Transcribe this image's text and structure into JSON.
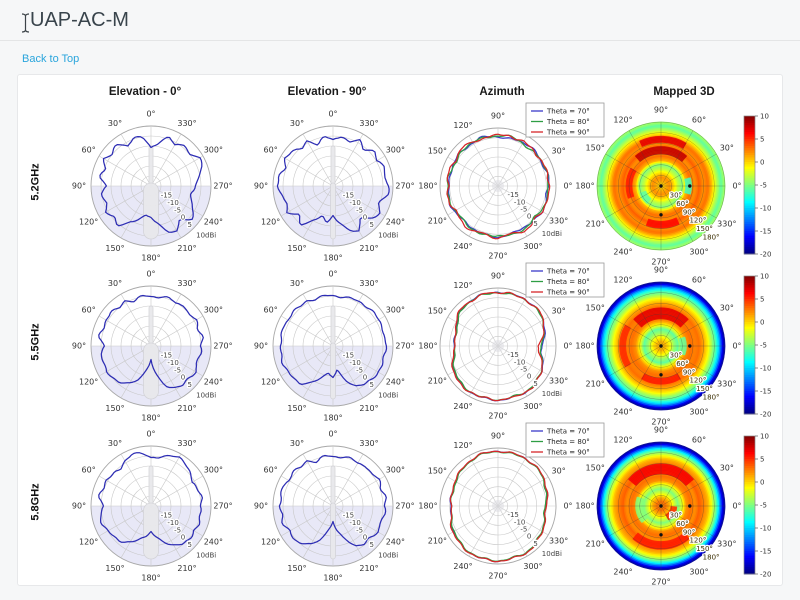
{
  "page": {
    "title": "UAP-AC-M",
    "back_link": "Back to Top"
  },
  "table": {
    "column_headers": [
      "Elevation - 0°",
      "Elevation - 90°",
      "Azimuth",
      "Mapped 3D"
    ],
    "row_labels": [
      "5.2GHz",
      "5.5GHz",
      "5.8GHz"
    ]
  },
  "chart_data": {
    "type": "polar-suite",
    "unit": "dBi",
    "radial_range": [
      -20,
      10
    ],
    "radial_ticks": [
      -15,
      -10,
      -5,
      0,
      5
    ],
    "radial_outer_label": "10dBi",
    "angle_step_deg": 10,
    "angle_labels": [
      "0°",
      "30°",
      "60°",
      "90°",
      "120°",
      "150°",
      "180°",
      "210°",
      "240°",
      "270°",
      "300°",
      "330°"
    ],
    "legend": {
      "entries": [
        {
          "label": "Theta = 70°",
          "color": "#3a3ac8"
        },
        {
          "label": "Theta = 80°",
          "color": "#2e9e44"
        },
        {
          "label": "Theta = 90°",
          "color": "#d62728"
        }
      ]
    },
    "colorbar": {
      "ticks": [
        10,
        5,
        0,
        -5,
        -10,
        -15,
        -20
      ],
      "range": [
        -20,
        10
      ]
    },
    "mapped3d_inner_labels": [
      "30°",
      "60°",
      "90°",
      "120°",
      "150°",
      "180°"
    ],
    "mapped3d_markers": [
      [
        0,
        0
      ],
      [
        0.45,
        0
      ],
      [
        0.45,
        270
      ]
    ],
    "colors": {
      "trace": "#2d2db4",
      "shading": "#d6d6f0",
      "grid": "#c9c9c9",
      "device": "#e9e9ec"
    },
    "rows": [
      {
        "frequency": "5.2GHz",
        "elevation0": {
          "values": [
            -1,
            4.5,
            6,
            3,
            7,
            5,
            7.5,
            4,
            6,
            2.5,
            5.5,
            3,
            6.5,
            4,
            5.5,
            1,
            -2,
            -6,
            -4,
            -1,
            4,
            6,
            2,
            6.5,
            4,
            1.5,
            0.5,
            2,
            4,
            7.5,
            8,
            4.5,
            7,
            3.5,
            6,
            2
          ]
        },
        "elevation90": {
          "values": [
            3,
            5,
            2,
            6,
            4,
            7,
            8,
            5,
            7.5,
            8,
            6,
            4,
            7,
            2,
            5,
            0,
            -4,
            -2,
            -5,
            -1,
            3,
            6,
            1,
            5,
            7,
            4,
            8,
            7.5,
            6,
            8,
            5,
            7,
            4,
            6.5,
            3,
            5.5
          ]
        },
        "azimuth": {
          "series": [
            {
              "name": "Theta = 70°",
              "values": [
                6,
                6.5,
                6,
                5.5,
                6,
                6.5,
                6,
                5.5,
                5,
                5.5,
                6,
                6.5,
                6,
                5.5,
                6,
                6,
                5.5,
                5,
                5.5,
                6,
                6.5,
                6,
                5.5,
                5,
                5.5,
                6,
                6,
                6.5,
                6,
                5.5,
                5,
                5.5,
                6,
                6.5,
                6,
                5.5
              ]
            },
            {
              "name": "Theta = 80°",
              "values": [
                5.5,
                6,
                6.5,
                6,
                5.5,
                5,
                5.5,
                6,
                6.5,
                6,
                5.5,
                6,
                6.5,
                6,
                5.5,
                5,
                5.5,
                6,
                6,
                6.5,
                6,
                5.5,
                5,
                5.5,
                6,
                6.5,
                6,
                5.5,
                6,
                6.5,
                6,
                5.5,
                5,
                5.5,
                6,
                6.5
              ]
            },
            {
              "name": "Theta = 90°",
              "values": [
                6.5,
                5.5,
                7,
                6,
                5,
                6.5,
                7,
                5.5,
                6.5,
                7,
                6,
                5,
                6.5,
                7.5,
                6,
                5.5,
                7,
                6,
                5.5,
                7,
                6.5,
                5,
                6,
                7,
                6.5,
                5.5,
                6.5,
                7,
                5.5,
                6,
                7,
                6.5,
                5.5,
                6.5,
                6,
                7
              ]
            }
          ]
        },
        "mapped3d": {
          "radial_profile": [
            [
              0,
              -1
            ],
            [
              0.07,
              1
            ],
            [
              0.14,
              2
            ],
            [
              0.2,
              0
            ],
            [
              0.27,
              -3
            ],
            [
              0.34,
              -5
            ],
            [
              0.4,
              1
            ],
            [
              0.47,
              3
            ],
            [
              0.54,
              2
            ],
            [
              0.6,
              3.5
            ],
            [
              0.67,
              2
            ],
            [
              0.74,
              3
            ],
            [
              0.8,
              0.5
            ],
            [
              0.87,
              -3
            ],
            [
              0.94,
              -6
            ],
            [
              1,
              -4
            ]
          ],
          "hot_arcs": [
            {
              "a0": 50,
              "a1": 130,
              "r0": 0.5,
              "r1": 0.62,
              "v": 8
            },
            {
              "a0": 60,
              "a1": 115,
              "r0": 0.68,
              "r1": 0.78,
              "v": 7
            },
            {
              "a0": 250,
              "a1": 295,
              "r0": 0.55,
              "r1": 0.66,
              "v": 6
            },
            {
              "a0": 150,
              "a1": 200,
              "r0": 0.45,
              "r1": 0.55,
              "v": 5.5
            }
          ],
          "cold_arcs": [
            {
              "a0": -15,
              "a1": 15,
              "r0": 0.38,
              "r1": 0.48,
              "v": -7
            },
            {
              "a0": 200,
              "a1": 230,
              "r0": 0.25,
              "r1": 0.35,
              "v": -6
            }
          ]
        }
      },
      {
        "frequency": "5.5GHz",
        "elevation0": {
          "values": [
            4.5,
            5.5,
            4,
            6,
            4.5,
            6.5,
            6,
            5,
            6.5,
            3.5,
            5.5,
            4.5,
            6,
            5,
            3.5,
            1.5,
            -2,
            -9,
            -13,
            -6,
            1,
            4,
            5.5,
            4.5,
            6,
            4,
            5.5,
            4.5,
            6.5,
            5,
            6,
            4.5,
            6.3,
            4.5,
            5.7,
            5
          ]
        },
        "elevation90": {
          "values": [
            5,
            5.5,
            5,
            6,
            5.5,
            6.5,
            6,
            6.5,
            6,
            6.5,
            6,
            6.5,
            6,
            5.5,
            4.5,
            1,
            -3,
            -7,
            -4,
            -8,
            -2,
            3,
            5,
            5.5,
            6,
            6.5,
            6,
            6.5,
            6,
            6.5,
            6,
            6.5,
            6,
            5.5,
            5.5,
            5
          ]
        },
        "azimuth": {
          "series": [
            {
              "name": "Theta = 70°",
              "values": [
                2.5,
                4,
                6,
                7,
                7.5,
                7.8,
                8,
                7.8,
                7.5,
                8,
                7.5,
                7.8,
                7.5,
                7,
                6,
                4.5,
                3,
                2.5,
                2.8,
                3,
                4.5,
                6,
                7,
                7.5,
                7.8,
                8,
                7.8,
                8,
                7.8,
                7.5,
                7.8,
                7.5,
                7,
                6,
                4.5,
                3
              ]
            },
            {
              "name": "Theta = 80°",
              "values": [
                2,
                3.5,
                5.5,
                6.8,
                7.3,
                7.6,
                7.8,
                7.6,
                7.3,
                7.8,
                7.3,
                7.6,
                7.3,
                6.8,
                5.8,
                4.2,
                2.8,
                2.2,
                2.5,
                2.8,
                4.2,
                5.8,
                6.8,
                7.3,
                7.6,
                7.8,
                7.6,
                7.8,
                7.6,
                7.3,
                7.6,
                7.3,
                6.8,
                5.8,
                4.2,
                2.8
              ]
            },
            {
              "name": "Theta = 90°",
              "values": [
                0.5,
                3,
                5.5,
                7,
                8,
                7.5,
                8,
                7.5,
                8,
                7.5,
                8,
                7.5,
                7,
                7.5,
                6.5,
                5,
                3.5,
                2,
                2.5,
                3.5,
                5,
                6.5,
                7.5,
                8,
                7.5,
                8,
                7.5,
                8,
                7.5,
                8,
                7.5,
                8,
                7,
                6,
                4,
                2
              ]
            }
          ]
        },
        "mapped3d": {
          "radial_profile": [
            [
              0,
              0.5
            ],
            [
              0.07,
              1
            ],
            [
              0.14,
              -1
            ],
            [
              0.2,
              -4
            ],
            [
              0.27,
              -6
            ],
            [
              0.34,
              -1
            ],
            [
              0.4,
              2
            ],
            [
              0.47,
              3
            ],
            [
              0.54,
              2.5
            ],
            [
              0.6,
              3
            ],
            [
              0.67,
              1.5
            ],
            [
              0.74,
              -1
            ],
            [
              0.8,
              -4
            ],
            [
              0.87,
              -7
            ],
            [
              0.93,
              -12
            ],
            [
              0.97,
              -17
            ],
            [
              1,
              -19
            ]
          ],
          "hot_arcs": [
            {
              "a0": 45,
              "a1": 135,
              "r0": 0.42,
              "r1": 0.6,
              "v": 7
            },
            {
              "a0": 240,
              "a1": 300,
              "r0": 0.5,
              "r1": 0.6,
              "v": 5.5
            },
            {
              "a0": 150,
              "a1": 210,
              "r0": 0.55,
              "r1": 0.65,
              "v": 5
            }
          ],
          "cold_arcs": [
            {
              "a0": -20,
              "a1": 20,
              "r0": 0.3,
              "r1": 0.4,
              "v": -6
            }
          ]
        }
      },
      {
        "frequency": "5.8GHz",
        "elevation0": {
          "values": [
            4,
            6.5,
            8,
            6,
            3.5,
            5,
            6,
            5,
            6.5,
            4,
            5.5,
            6,
            5,
            4,
            3,
            1,
            -2,
            -5,
            -7,
            -4,
            -1,
            2.5,
            5,
            5.5,
            4.5,
            6,
            5,
            4.5,
            6,
            5,
            3.5,
            5.5,
            7.5,
            8,
            6.5,
            5
          ]
        },
        "elevation90": {
          "values": [
            4.5,
            5.5,
            3.5,
            6,
            5,
            6.5,
            5.5,
            7,
            6,
            7,
            5.5,
            6.5,
            5,
            6,
            4,
            2,
            -2,
            -9,
            -12,
            -7,
            -3,
            3,
            5,
            4,
            6,
            5,
            6.5,
            5.5,
            7,
            5.5,
            6.5,
            5,
            6,
            4.5,
            5.5,
            5
          ]
        },
        "azimuth": {
          "series": [
            {
              "name": "Theta = 70°",
              "values": [
                4.5,
                5.5,
                6.5,
                7.5,
                8,
                8.2,
                8.5,
                8.2,
                8,
                8.5,
                8.2,
                8,
                7.5,
                7,
                6,
                5.5,
                4.8,
                4.5,
                4.5,
                4.8,
                5.5,
                6.5,
                7.2,
                7.8,
                8.2,
                8.5,
                8.2,
                8.5,
                8.2,
                8,
                8.2,
                7.8,
                7,
                6.2,
                5.5,
                4.8
              ]
            },
            {
              "name": "Theta = 80°",
              "values": [
                4.2,
                5.2,
                6.2,
                7.2,
                7.8,
                8,
                8.3,
                8,
                7.8,
                8.3,
                8,
                7.8,
                7.3,
                6.8,
                5.8,
                5.2,
                4.5,
                4.2,
                4.2,
                4.5,
                5.2,
                6.2,
                7,
                7.6,
                8,
                8.3,
                8,
                8.3,
                8,
                7.8,
                8,
                7.6,
                6.8,
                6,
                5.2,
                4.5
              ]
            },
            {
              "name": "Theta = 90°",
              "values": [
                4.8,
                5.8,
                6.8,
                7.6,
                8.1,
                8.3,
                8.4,
                8.3,
                8.1,
                8.4,
                8.3,
                8.1,
                7.6,
                7.1,
                6.2,
                5.8,
                5,
                4.4,
                4.2,
                4.6,
                5.8,
                7,
                7.5,
                8,
                8.3,
                8.5,
                8.3,
                8.5,
                8.3,
                8.1,
                8.3,
                8,
                7.2,
                6.4,
                5.6,
                5
              ]
            }
          ]
        },
        "mapped3d": {
          "radial_profile": [
            [
              0,
              2
            ],
            [
              0.07,
              3
            ],
            [
              0.14,
              1
            ],
            [
              0.2,
              -2
            ],
            [
              0.27,
              -5
            ],
            [
              0.34,
              -2
            ],
            [
              0.4,
              2
            ],
            [
              0.47,
              3
            ],
            [
              0.54,
              2
            ],
            [
              0.6,
              3.5
            ],
            [
              0.67,
              2.5
            ],
            [
              0.74,
              1
            ],
            [
              0.8,
              -2
            ],
            [
              0.87,
              -6
            ],
            [
              0.93,
              -12
            ],
            [
              0.97,
              -17
            ],
            [
              1,
              -19
            ]
          ],
          "hot_arcs": [
            {
              "a0": 40,
              "a1": 140,
              "r0": 0.5,
              "r1": 0.66,
              "v": 6.5
            },
            {
              "a0": 230,
              "a1": 310,
              "r0": 0.55,
              "r1": 0.68,
              "v": 5.5
            },
            {
              "a0": 300,
              "a1": 355,
              "r0": 0.15,
              "r1": 0.25,
              "v": 5
            }
          ],
          "cold_arcs": [
            {
              "a0": 160,
              "a1": 220,
              "r0": 0.28,
              "r1": 0.4,
              "v": -5
            }
          ]
        }
      }
    ]
  }
}
